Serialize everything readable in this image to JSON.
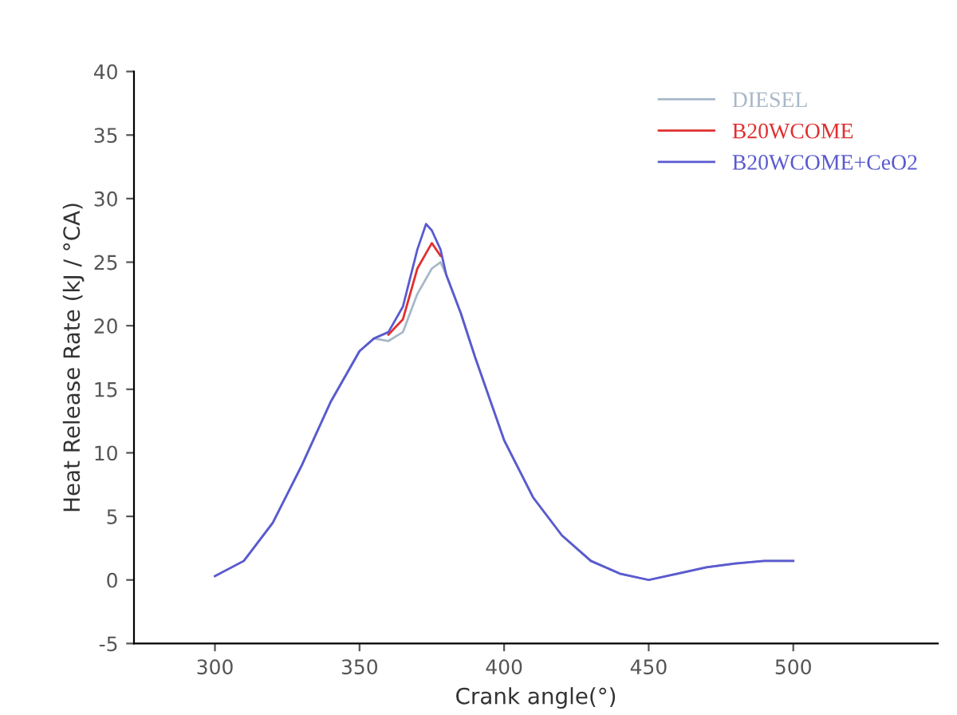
{
  "chart_data": {
    "type": "line",
    "xlabel": "Crank angle(°)",
    "ylabel": "Heat Release Rate (kJ / °CA)",
    "xlim": [
      272,
      550
    ],
    "ylim": [
      -5,
      40
    ],
    "xticks": [
      300,
      350,
      400,
      450,
      500
    ],
    "yticks": [
      -5,
      0,
      5,
      10,
      15,
      20,
      25,
      30,
      35,
      40
    ],
    "grid": false,
    "legend": "top right",
    "line_style": "solid",
    "marker": "none",
    "series": [
      {
        "name": "DIESEL",
        "color": "#a8b8c8",
        "x": [
          300,
          310,
          320,
          330,
          340,
          350,
          355,
          360,
          365,
          370,
          375,
          378,
          380,
          385,
          390,
          400,
          410,
          420,
          430,
          440,
          450,
          460,
          470,
          480,
          490,
          500
        ],
        "values": [
          0.3,
          1.5,
          4.5,
          9,
          14,
          18,
          19,
          18.8,
          19.5,
          22.5,
          24.5,
          25,
          24,
          21,
          17.5,
          11,
          6.5,
          3.5,
          1.5,
          0.5,
          0,
          0.5,
          1,
          1.3,
          1.5,
          1.5
        ]
      },
      {
        "name": "B20WCOME",
        "color": "#e03030",
        "x": [
          360,
          365,
          370,
          375,
          378
        ],
        "values": [
          19.3,
          20.5,
          24.5,
          26.5,
          25.5
        ]
      },
      {
        "name": "B20WCOME+CeO2",
        "color": "#5a5ad0",
        "x": [
          300,
          310,
          320,
          330,
          340,
          350,
          355,
          360,
          365,
          370,
          373,
          375,
          378,
          380,
          385,
          390,
          400,
          410,
          420,
          430,
          440,
          450,
          460,
          470,
          480,
          490,
          500
        ],
        "values": [
          0.3,
          1.5,
          4.5,
          9,
          14,
          18,
          19,
          19.5,
          21.5,
          26,
          28,
          27.5,
          26,
          24,
          21,
          17.5,
          11,
          6.5,
          3.5,
          1.5,
          0.5,
          0,
          0.5,
          1,
          1.3,
          1.5,
          1.5
        ]
      }
    ]
  }
}
